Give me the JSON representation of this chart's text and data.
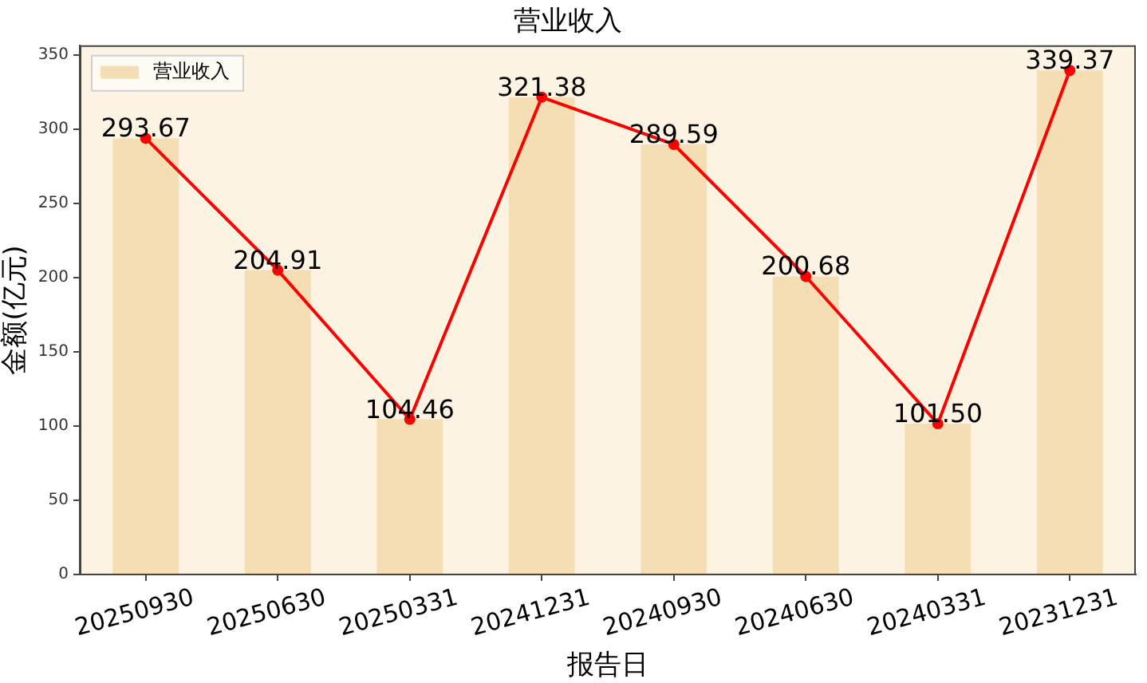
{
  "chart_data": {
    "type": "bar",
    "title": "营业收入",
    "xlabel": "报告日",
    "ylabel": "金额(亿元)",
    "categories": [
      "20250930",
      "20250630",
      "20250331",
      "20241231",
      "20240930",
      "20240630",
      "20240331",
      "20231231"
    ],
    "series": [
      {
        "name": "营业收入",
        "color": "#f5deb3",
        "values": [
          293.67,
          204.91,
          104.46,
          321.38,
          289.59,
          200.68,
          101.5,
          339.37
        ],
        "value_labels": [
          "293.67",
          "204.91",
          "104.46",
          "321.38",
          "289.59",
          "200.68",
          "101.50",
          "339.37"
        ]
      },
      {
        "type": "line",
        "color": "#ff0000",
        "values": [
          293.67,
          204.91,
          104.46,
          321.38,
          289.59,
          200.68,
          101.5,
          339.37
        ],
        "marker": "circle",
        "line_style": "solid"
      }
    ],
    "ylim": [
      0,
      356.3
    ],
    "yticks": [
      0,
      50,
      100,
      150,
      200,
      250,
      300,
      350
    ],
    "grid": false,
    "legend": "top left"
  }
}
